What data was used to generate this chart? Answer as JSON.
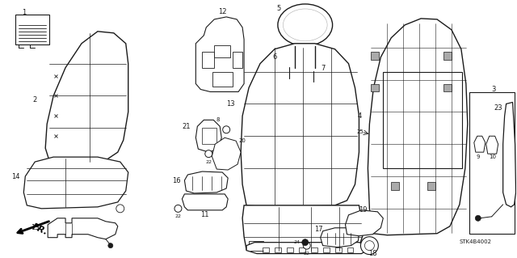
{
  "bg_color": "#ffffff",
  "fig_width": 6.4,
  "fig_height": 3.19,
  "dpi": 100,
  "line_color": "#1a1a1a",
  "label_fontsize": 6.0,
  "gray": "#888888"
}
